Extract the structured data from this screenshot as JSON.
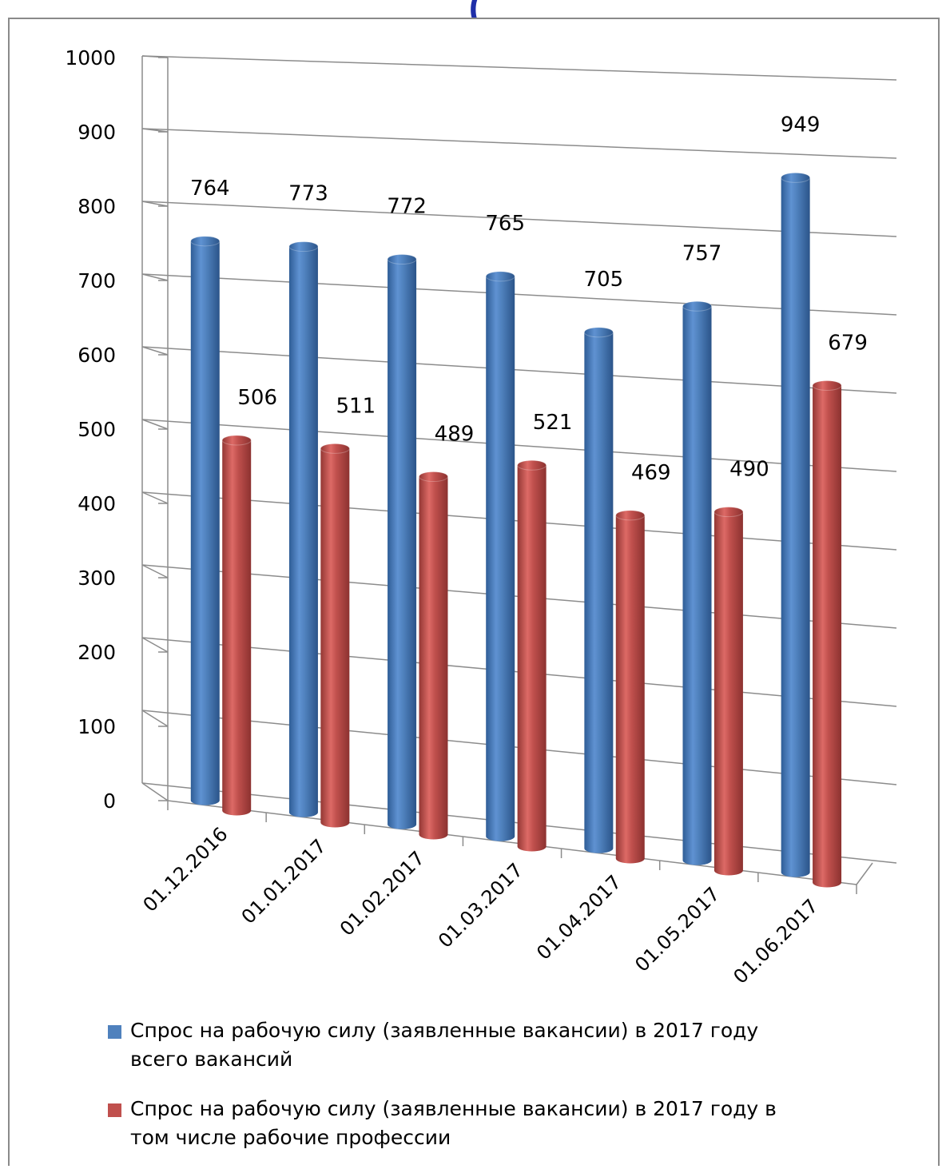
{
  "chart_data": {
    "type": "bar",
    "title": "",
    "xlabel": "",
    "ylabel": "",
    "ylim": [
      0,
      1000
    ],
    "yticks": [
      "0",
      "100",
      "200",
      "300",
      "400",
      "500",
      "600",
      "700",
      "800",
      "900",
      "1000"
    ],
    "categories": [
      "01.12.2016",
      "01.01.2017",
      "01.02.2017",
      "01.03.2017",
      "01.04.2017",
      "01.05.2017",
      "01.06.2017"
    ],
    "series": [
      {
        "name": "Спрос на рабочую силу (заявленные вакансии) в 2017 году всего вакансий",
        "color": "#4f81bd",
        "values": [
          764,
          773,
          772,
          765,
          705,
          757,
          949
        ],
        "labels": [
          "764",
          "773",
          "772",
          "765",
          "705",
          "757",
          "949"
        ]
      },
      {
        "name": "Спрос на рабочую силу (заявленные вакансии) в 2017 году в том числе рабочие профессии",
        "color": "#c0504d",
        "values": [
          506,
          511,
          489,
          521,
          469,
          490,
          679
        ],
        "labels": [
          "506",
          "511",
          "489",
          "521",
          "469",
          "490",
          "679"
        ]
      }
    ],
    "grid": true,
    "legend_position": "bottom",
    "style": "3d-cylinder"
  },
  "legend": {
    "items": [
      {
        "label_line1": "Спрос на рабочую силу (заявленные вакансии) в 2017 году",
        "label_line2": "всего вакансий"
      },
      {
        "label_line1": "Спрос на рабочую силу (заявленные вакансии) в 2017 году в",
        "label_line2": "том числе рабочие профессии"
      }
    ]
  }
}
